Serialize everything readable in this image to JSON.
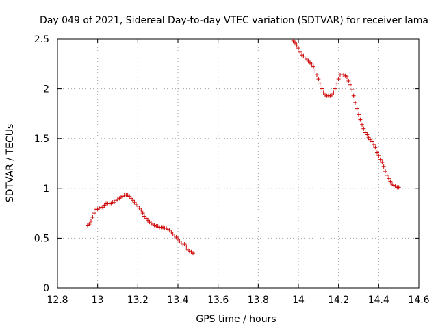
{
  "chart_data": {
    "type": "scatter",
    "title": "Day 049 of 2021, Sidereal Day-to-day VTEC variation (SDTVAR) for receiver lama",
    "xlabel": "GPS time / hours",
    "ylabel": "SDTVAR / TECUs",
    "xlim": [
      12.8,
      14.6
    ],
    "ylim": [
      0,
      2.5
    ],
    "xticks": [
      "12.8",
      "13",
      "13.2",
      "13.4",
      "13.6",
      "13.8",
      "14",
      "14.2",
      "14.4",
      "14.6"
    ],
    "xtick_values": [
      12.8,
      13.0,
      13.2,
      13.4,
      13.6,
      13.8,
      14.0,
      14.2,
      14.4,
      14.6
    ],
    "yticks": [
      "0",
      "0.5",
      "1",
      "1.5",
      "2",
      "2.5"
    ],
    "ytick_values": [
      0,
      0.5,
      1.0,
      1.5,
      2.0,
      2.5
    ],
    "grid": true,
    "marker": "+",
    "color": "#cc0000",
    "series": [
      {
        "name": "SDTVAR",
        "x": [
          12.95,
          12.958,
          12.967,
          12.975,
          12.983,
          12.992,
          13.0,
          13.008,
          13.017,
          13.025,
          13.033,
          13.042,
          13.05,
          13.058,
          13.067,
          13.075,
          13.083,
          13.092,
          13.1,
          13.108,
          13.117,
          13.125,
          13.133,
          13.142,
          13.15,
          13.158,
          13.167,
          13.175,
          13.183,
          13.192,
          13.2,
          13.208,
          13.217,
          13.225,
          13.233,
          13.242,
          13.25,
          13.258,
          13.267,
          13.275,
          13.283,
          13.292,
          13.3,
          13.308,
          13.317,
          13.325,
          13.333,
          13.342,
          13.35,
          13.358,
          13.367,
          13.375,
          13.383,
          13.392,
          13.4,
          13.408,
          13.417,
          13.425,
          13.433,
          13.442,
          13.45,
          13.458,
          13.467,
          13.475,
          13.975,
          13.983,
          13.992,
          14.0,
          14.008,
          14.017,
          14.025,
          14.033,
          14.042,
          14.05,
          14.058,
          14.067,
          14.075,
          14.083,
          14.092,
          14.1,
          14.108,
          14.117,
          14.125,
          14.133,
          14.142,
          14.15,
          14.158,
          14.167,
          14.175,
          14.183,
          14.192,
          14.2,
          14.208,
          14.217,
          14.225,
          14.233,
          14.242,
          14.25,
          14.258,
          14.267,
          14.275,
          14.283,
          14.292,
          14.3,
          14.308,
          14.317,
          14.325,
          14.333,
          14.342,
          14.35,
          14.358,
          14.367,
          14.375,
          14.383,
          14.392,
          14.4,
          14.408,
          14.417,
          14.425,
          14.433,
          14.442,
          14.45,
          14.458,
          14.467,
          14.475,
          14.483,
          14.492,
          14.5
        ],
        "y": [
          0.63,
          0.64,
          0.67,
          0.71,
          0.75,
          0.79,
          0.79,
          0.8,
          0.81,
          0.81,
          0.83,
          0.85,
          0.85,
          0.85,
          0.85,
          0.86,
          0.86,
          0.88,
          0.89,
          0.9,
          0.91,
          0.92,
          0.93,
          0.93,
          0.93,
          0.92,
          0.9,
          0.88,
          0.86,
          0.84,
          0.82,
          0.8,
          0.78,
          0.75,
          0.72,
          0.7,
          0.68,
          0.66,
          0.65,
          0.64,
          0.63,
          0.62,
          0.62,
          0.61,
          0.61,
          0.61,
          0.6,
          0.6,
          0.59,
          0.58,
          0.56,
          0.54,
          0.52,
          0.51,
          0.49,
          0.47,
          0.45,
          0.43,
          0.44,
          0.41,
          0.38,
          0.37,
          0.36,
          0.35,
          2.48,
          2.46,
          2.44,
          2.41,
          2.37,
          2.34,
          2.33,
          2.31,
          2.3,
          2.28,
          2.26,
          2.25,
          2.22,
          2.18,
          2.14,
          2.1,
          2.05,
          2.0,
          1.96,
          1.94,
          1.93,
          1.93,
          1.93,
          1.94,
          1.96,
          2.0,
          2.05,
          2.1,
          2.14,
          2.14,
          2.14,
          2.13,
          2.12,
          2.08,
          2.04,
          1.99,
          1.93,
          1.86,
          1.8,
          1.74,
          1.69,
          1.64,
          1.6,
          1.56,
          1.54,
          1.51,
          1.49,
          1.47,
          1.44,
          1.41,
          1.36,
          1.33,
          1.29,
          1.26,
          1.22,
          1.17,
          1.13,
          1.1,
          1.07,
          1.04,
          1.03,
          1.02,
          1.01,
          1.01
        ]
      }
    ]
  }
}
